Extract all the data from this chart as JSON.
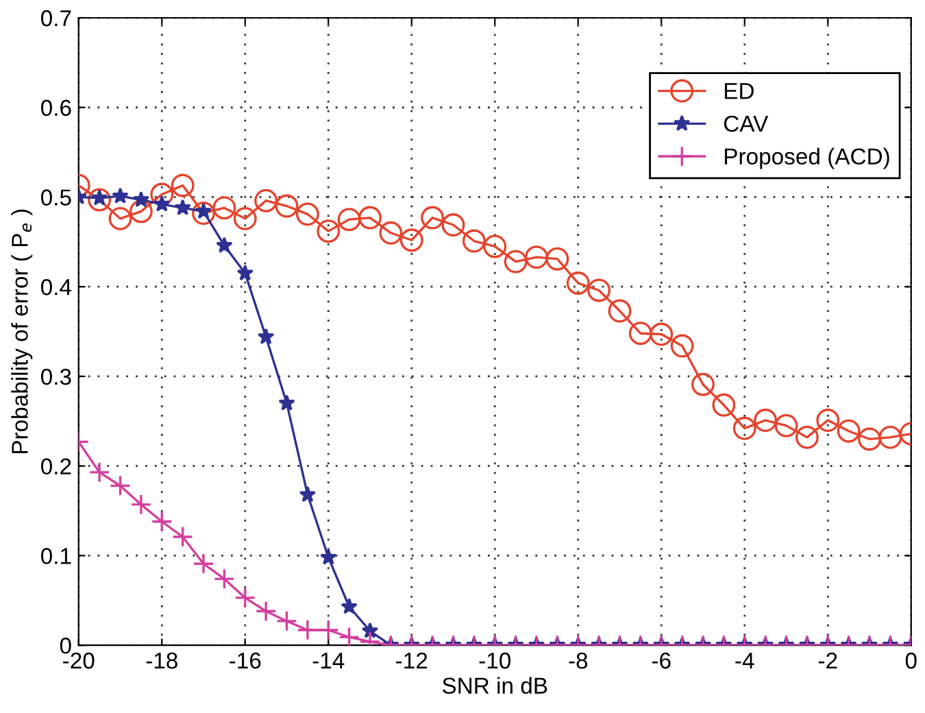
{
  "chart_data": {
    "type": "line",
    "xlabel": "SNR in dB",
    "ylabel": "Probability of error ( P$_{e}$ )",
    "x": [
      -20,
      -19.5,
      -19,
      -18.5,
      -18,
      -17.5,
      -17,
      -16.5,
      -16,
      -15.5,
      -15,
      -14.5,
      -14,
      -13.5,
      -13,
      -12.5,
      -12,
      -11.5,
      -11,
      -10.5,
      -10,
      -9.5,
      -9,
      -8.5,
      -8,
      -7.5,
      -7,
      -6.5,
      -6,
      -5.5,
      -5,
      -4.5,
      -4,
      -3.5,
      -3,
      -2.5,
      -2,
      -1.5,
      -1,
      -0.5,
      0
    ],
    "series": [
      {
        "name": "ED",
        "color": "#e5432c",
        "marker": "circle",
        "values": [
          0.513,
          0.497,
          0.476,
          0.484,
          0.503,
          0.513,
          0.482,
          0.488,
          0.476,
          0.496,
          0.49,
          0.481,
          0.462,
          0.475,
          0.477,
          0.46,
          0.452,
          0.477,
          0.469,
          0.451,
          0.445,
          0.428,
          0.433,
          0.431,
          0.404,
          0.396,
          0.373,
          0.348,
          0.347,
          0.334,
          0.291,
          0.268,
          0.242,
          0.251,
          0.245,
          0.232,
          0.251,
          0.239,
          0.23,
          0.232,
          0.236
        ]
      },
      {
        "name": "CAV",
        "color": "#2e3192",
        "marker": "star",
        "values": [
          0.5,
          0.499,
          0.501,
          0.497,
          0.492,
          0.488,
          0.484,
          0.446,
          0.415,
          0.344,
          0.27,
          0.168,
          0.098,
          0.043,
          0.016,
          0,
          0,
          0,
          0,
          0,
          0,
          0,
          0,
          0,
          0,
          0,
          0,
          0,
          0,
          0,
          0,
          0,
          0,
          0,
          0,
          0,
          0,
          0,
          0,
          0,
          0
        ]
      },
      {
        "name": "Proposed (ACD)",
        "color": "#d23f9e",
        "marker": "cross",
        "values": [
          0.227,
          0.193,
          0.178,
          0.157,
          0.138,
          0.121,
          0.091,
          0.074,
          0.053,
          0.038,
          0.027,
          0.017,
          0.017,
          0.009,
          0.004,
          0,
          0,
          0,
          0,
          0,
          0,
          0,
          0,
          0,
          0,
          0,
          0,
          0,
          0,
          0,
          0,
          0,
          0,
          0,
          0,
          0,
          0,
          0,
          0,
          0,
          0
        ]
      }
    ],
    "xlim": [
      -20,
      0
    ],
    "xticks": [
      -20,
      -18,
      -16,
      -14,
      -12,
      -10,
      -8,
      -6,
      -4,
      -2,
      0
    ],
    "ylim": [
      0,
      0.7
    ],
    "yticks": [
      0,
      0.1,
      0.2,
      0.3,
      0.4,
      0.5,
      0.6,
      0.7
    ],
    "grid": true,
    "legend": "top right",
    "line_style": "solid"
  }
}
